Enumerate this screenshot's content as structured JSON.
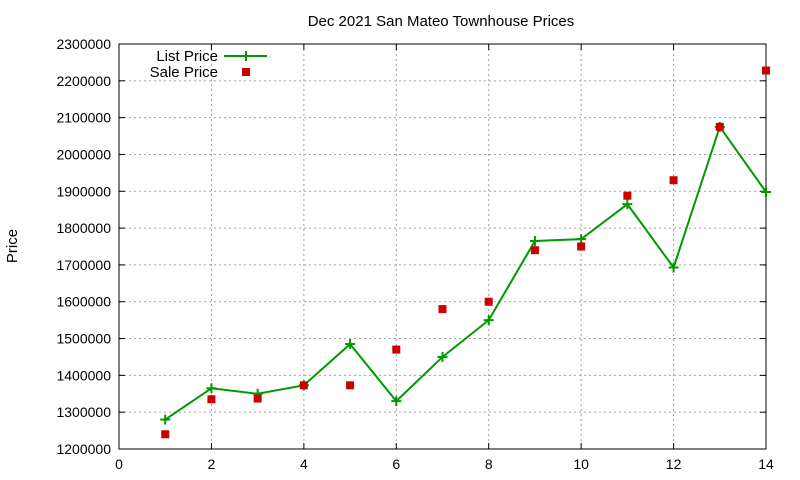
{
  "chart_data": {
    "type": "line",
    "title": "Dec 2021 San Mateo Townhouse Prices",
    "xlabel": "",
    "ylabel": "Price",
    "xlim": [
      0,
      14
    ],
    "ylim": [
      1200000,
      2300000
    ],
    "x_ticks": [
      0,
      2,
      4,
      6,
      8,
      10,
      12,
      14
    ],
    "y_ticks": [
      1200000,
      1300000,
      1400000,
      1500000,
      1600000,
      1700000,
      1800000,
      1900000,
      2000000,
      2100000,
      2200000,
      2300000
    ],
    "grid": true,
    "legend_position": "top-left",
    "x": [
      1,
      2,
      3,
      4,
      5,
      6,
      7,
      8,
      9,
      10,
      11,
      12,
      13,
      14
    ],
    "series": [
      {
        "name": "List Price",
        "style": "line+cross",
        "color": "#009900",
        "values": [
          1280000,
          1365000,
          1350000,
          1373000,
          1485000,
          1330000,
          1450000,
          1550000,
          1765000,
          1770000,
          1865000,
          1693000,
          2075000,
          1898000
        ]
      },
      {
        "name": "Sale Price",
        "style": "square-points",
        "color": "#cc0000",
        "values": [
          1240000,
          1335000,
          1337000,
          1373000,
          1373000,
          1470000,
          1580000,
          1600000,
          1740000,
          1750000,
          1888000,
          1930000,
          2075000,
          2228000
        ]
      }
    ]
  }
}
